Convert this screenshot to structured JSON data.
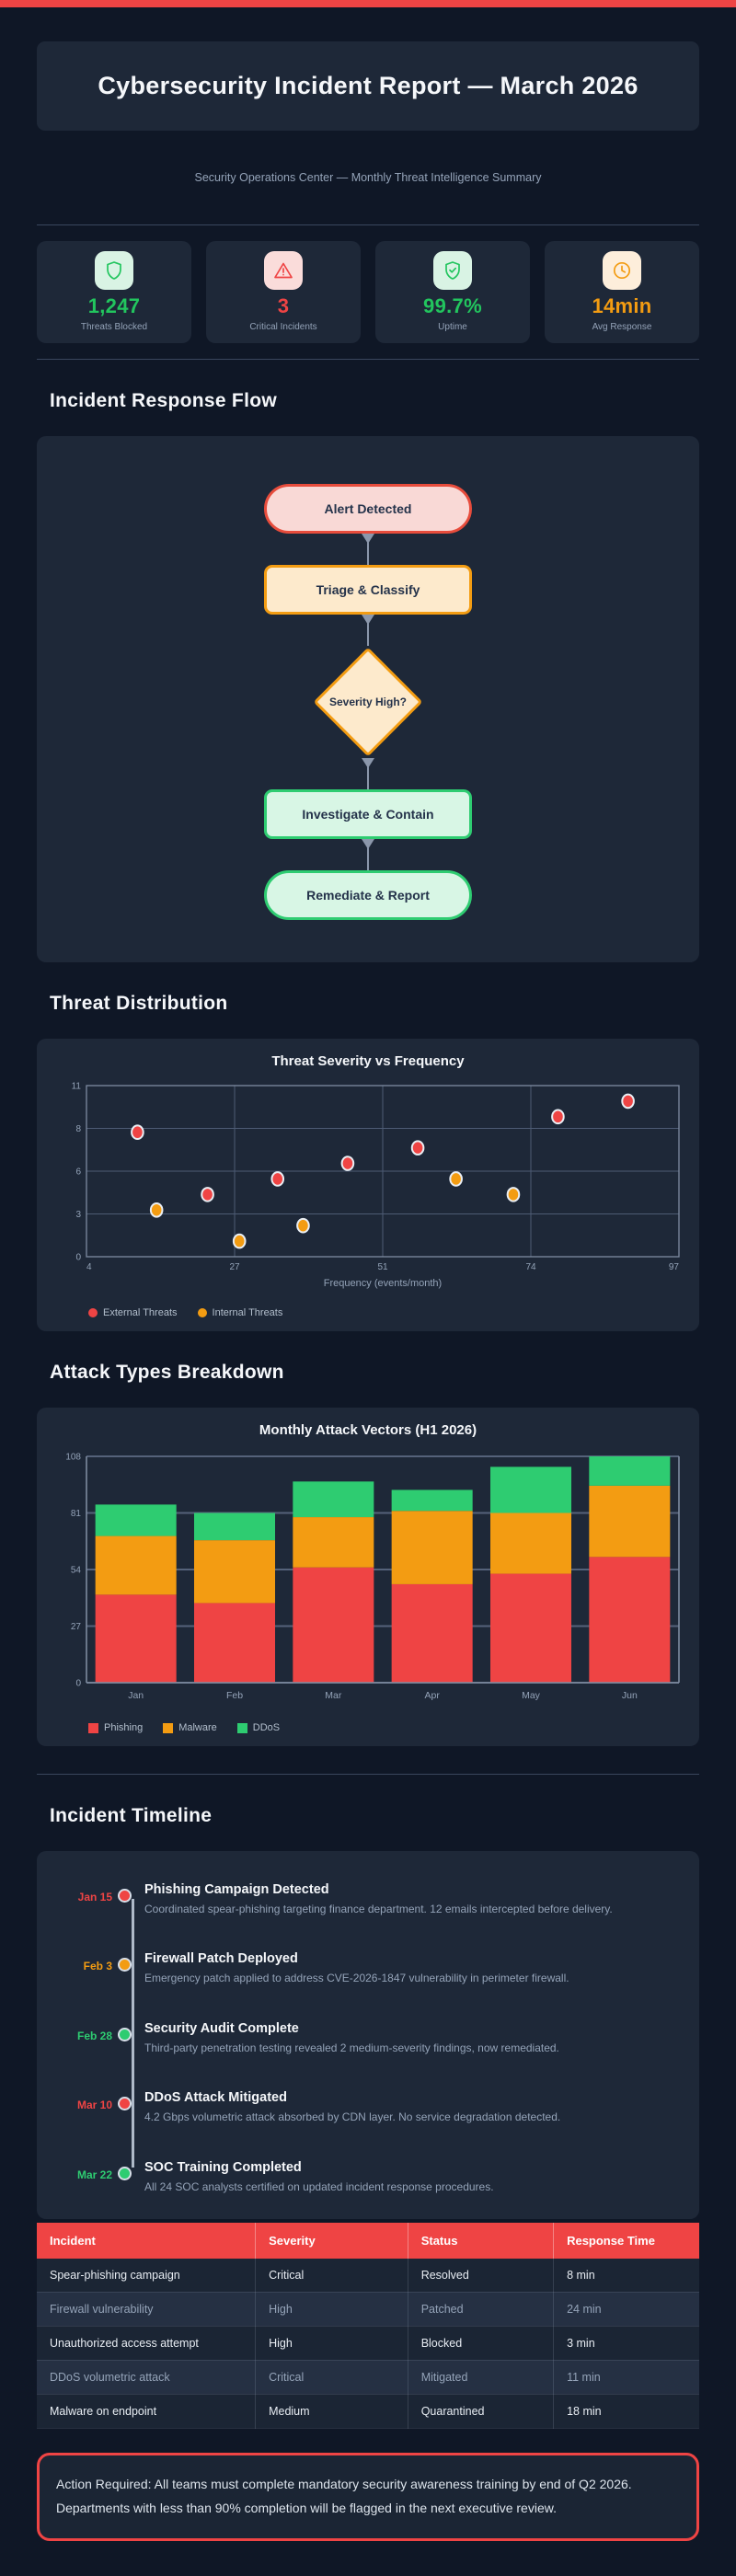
{
  "header": {
    "title": "Cybersecurity Incident Report — March 2026",
    "subtitle": "Security Operations Center — Monthly Threat Intelligence Summary"
  },
  "colors": {
    "red": "#ef4444",
    "green": "#22c55e",
    "orange": "#f39c12",
    "bar_green": "#2ecc71"
  },
  "stats": [
    {
      "icon": "shield-icon",
      "value": "1,247",
      "label": "Threats Blocked",
      "color": "#22c55e"
    },
    {
      "icon": "alert-triangle-icon",
      "value": "3",
      "label": "Critical Incidents",
      "color": "#ef4444"
    },
    {
      "icon": "shield-check-icon",
      "value": "99.7%",
      "label": "Uptime",
      "color": "#22c55e"
    },
    {
      "icon": "clock-icon",
      "value": "14min",
      "label": "Avg Response",
      "color": "#f39c12"
    }
  ],
  "sections": {
    "flow": "Incident Response Flow",
    "threat": "Threat Distribution",
    "attack": "Attack Types Breakdown",
    "timeline": "Incident Timeline"
  },
  "flow": {
    "nodes": [
      {
        "label": "Alert Detected",
        "shape": "stadium",
        "theme": "red"
      },
      {
        "label": "Triage & Classify",
        "shape": "rect",
        "theme": "orange"
      },
      {
        "label": "Severity High?",
        "shape": "diamond",
        "theme": "orange"
      },
      {
        "label": "Investigate & Contain",
        "shape": "rect",
        "theme": "green"
      },
      {
        "label": "Remediate & Report",
        "shape": "stadium",
        "theme": "green"
      }
    ]
  },
  "chart_data": [
    {
      "type": "scatter",
      "title": "Threat Severity vs Frequency",
      "xlabel": "Frequency (events/month)",
      "ylabel": "",
      "xlim": [
        4,
        97
      ],
      "ylim": [
        0,
        11
      ],
      "x_ticks": [
        4,
        27,
        51,
        74,
        97
      ],
      "y_ticks": [
        0,
        3,
        6,
        8,
        11
      ],
      "grid": true,
      "legend_position": "bottom-left",
      "series": [
        {
          "name": "External Threats",
          "color": "#ef4444",
          "points": [
            [
              12,
              8
            ],
            [
              23,
              4
            ],
            [
              34,
              5
            ],
            [
              45,
              6
            ],
            [
              56,
              7
            ],
            [
              78,
              9
            ],
            [
              89,
              10
            ]
          ]
        },
        {
          "name": "Internal Threats",
          "color": "#f39c12",
          "points": [
            [
              15,
              3
            ],
            [
              28,
              1
            ],
            [
              38,
              2
            ],
            [
              62,
              5
            ],
            [
              71,
              4
            ]
          ]
        }
      ]
    },
    {
      "type": "bar",
      "stacked": true,
      "title": "Monthly Attack Vectors (H1 2026)",
      "categories": [
        "Jan",
        "Feb",
        "Mar",
        "Apr",
        "May",
        "Jun"
      ],
      "series": [
        {
          "name": "Phishing",
          "color": "#ef4444",
          "values": [
            42,
            38,
            55,
            47,
            52,
            60
          ]
        },
        {
          "name": "Malware",
          "color": "#f39c12",
          "values": [
            28,
            30,
            24,
            35,
            29,
            34
          ]
        },
        {
          "name": "DDoS",
          "color": "#2ecc71",
          "values": [
            15,
            13,
            17,
            10,
            22,
            14
          ]
        }
      ],
      "ylim": [
        0,
        108
      ],
      "y_ticks": [
        0,
        27,
        54,
        81,
        108
      ],
      "grid": true,
      "legend_position": "bottom-left"
    }
  ],
  "timeline": {
    "entries": [
      {
        "date": "Jan 15",
        "color": "#ef4444",
        "title": "Phishing Campaign Detected",
        "desc": "Coordinated spear-phishing targeting finance department. 12 emails intercepted before delivery."
      },
      {
        "date": "Feb 3",
        "color": "#f39c12",
        "title": "Firewall Patch Deployed",
        "desc": "Emergency patch applied to address CVE-2026-1847 vulnerability in perimeter firewall."
      },
      {
        "date": "Feb 28",
        "color": "#2ecc71",
        "title": "Security Audit Complete",
        "desc": "Third-party penetration testing revealed 2 medium-severity findings, now remediated."
      },
      {
        "date": "Mar 10",
        "color": "#ef4444",
        "title": "DDoS Attack Mitigated",
        "desc": "4.2 Gbps volumetric attack absorbed by CDN layer. No service degradation detected."
      },
      {
        "date": "Mar 22",
        "color": "#2ecc71",
        "title": "SOC Training Completed",
        "desc": "All 24 SOC analysts certified on updated incident response procedures."
      }
    ]
  },
  "table": {
    "headers": [
      "Incident",
      "Severity",
      "Status",
      "Response Time"
    ],
    "rows": [
      [
        "Spear-phishing campaign",
        "Critical",
        "Resolved",
        "8 min"
      ],
      [
        "Firewall vulnerability",
        "High",
        "Patched",
        "24 min"
      ],
      [
        "Unauthorized access attempt",
        "High",
        "Blocked",
        "3 min"
      ],
      [
        "DDoS volumetric attack",
        "Critical",
        "Mitigated",
        "11 min"
      ],
      [
        "Malware on endpoint",
        "Medium",
        "Quarantined",
        "18 min"
      ]
    ]
  },
  "callout": {
    "text": "Action Required: All teams must complete mandatory security awareness training by end of Q2 2026. Departments with less than 90% completion will be flagged in the next executive review."
  }
}
